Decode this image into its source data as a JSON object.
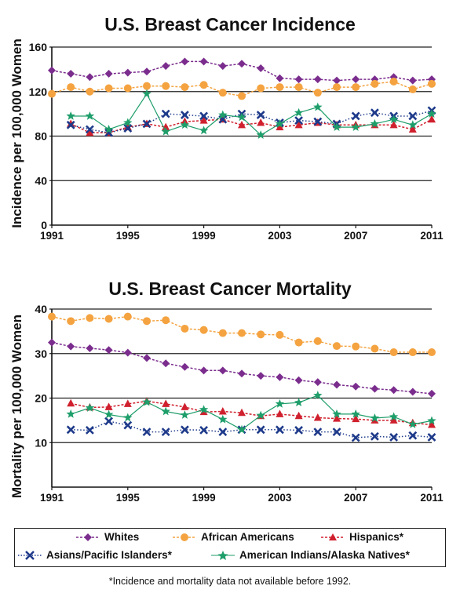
{
  "chart_data": [
    {
      "type": "line",
      "title": "U.S. Breast Cancer Incidence",
      "ylabel": "Incidence per 100,000 Women",
      "xlabel": "",
      "ylim": [
        0,
        160
      ],
      "yticks": [
        0,
        40,
        80,
        120,
        160
      ],
      "xticks": [
        1991,
        1995,
        1999,
        2003,
        2007,
        2011
      ],
      "xlim": [
        1991,
        2011
      ],
      "grid": "horizontal",
      "series": [
        {
          "name": "Whites",
          "color": "#7B2D8E",
          "marker": "diamond",
          "style": "dashed",
          "x": [
            1991,
            1992,
            1993,
            1994,
            1995,
            1996,
            1997,
            1998,
            1999,
            2000,
            2001,
            2002,
            2003,
            2004,
            2005,
            2006,
            2007,
            2008,
            2009,
            2010,
            2011
          ],
          "values": [
            139,
            136,
            133,
            136,
            137,
            138,
            143,
            147,
            147,
            143,
            145,
            141,
            132,
            131,
            131,
            130,
            131,
            131,
            133,
            130,
            131
          ]
        },
        {
          "name": "African Americans",
          "color": "#F4A340",
          "marker": "circle",
          "style": "dashed",
          "x": [
            1991,
            1992,
            1993,
            1994,
            1995,
            1996,
            1997,
            1998,
            1999,
            2000,
            2001,
            2002,
            2003,
            2004,
            2005,
            2006,
            2007,
            2008,
            2009,
            2010,
            2011
          ],
          "values": [
            118,
            124,
            120,
            123,
            123,
            125,
            125,
            124,
            126,
            119,
            116,
            123,
            124,
            124,
            119,
            124,
            124,
            127,
            129,
            122,
            127
          ]
        },
        {
          "name": "Hispanics*",
          "color": "#D0202E",
          "marker": "triangle",
          "style": "dashed",
          "x": [
            1992,
            1993,
            1994,
            1995,
            1996,
            1997,
            1998,
            1999,
            2000,
            2001,
            2002,
            2003,
            2004,
            2005,
            2006,
            2007,
            2008,
            2009,
            2010,
            2011
          ],
          "values": [
            91,
            83,
            83,
            88,
            91,
            88,
            93,
            94,
            95,
            90,
            92,
            88,
            90,
            92,
            90,
            90,
            90,
            90,
            86,
            95
          ]
        },
        {
          "name": "Asians/Pacific Islanders*",
          "color": "#1E3A8A",
          "marker": "x",
          "style": "dotted",
          "x": [
            1992,
            1993,
            1994,
            1995,
            1996,
            1997,
            1998,
            1999,
            2000,
            2001,
            2002,
            2003,
            2004,
            2005,
            2006,
            2007,
            2008,
            2009,
            2010,
            2011
          ],
          "values": [
            90,
            86,
            83,
            87,
            91,
            100,
            99,
            98,
            95,
            100,
            99,
            92,
            94,
            93,
            91,
            98,
            101,
            98,
            98,
            103
          ]
        },
        {
          "name": "American Indians/Alaska Natives*",
          "color": "#1E9E6A",
          "marker": "star",
          "style": "solid",
          "x": [
            1992,
            1993,
            1994,
            1995,
            1996,
            1997,
            1998,
            1999,
            2000,
            2001,
            2002,
            2003,
            2004,
            2005,
            2006,
            2007,
            2008,
            2009,
            2010,
            2011
          ],
          "values": [
            98,
            98,
            86,
            92,
            118,
            84,
            90,
            85,
            99,
            97,
            81,
            91,
            101,
            106,
            88,
            88,
            91,
            95,
            90,
            100
          ]
        }
      ]
    },
    {
      "type": "line",
      "title": "U.S. Breast Cancer Mortality",
      "ylabel": "Mortality per 100,000 Women",
      "xlabel": "",
      "ylim": [
        0,
        40
      ],
      "yticks": [
        10,
        20,
        30,
        40
      ],
      "xticks": [
        1991,
        1995,
        1999,
        2003,
        2007,
        2011
      ],
      "xlim": [
        1991,
        2011
      ],
      "grid": "horizontal",
      "series": [
        {
          "name": "Whites",
          "color": "#7B2D8E",
          "marker": "diamond",
          "style": "dashed",
          "x": [
            1991,
            1992,
            1993,
            1994,
            1995,
            1996,
            1997,
            1998,
            1999,
            2000,
            2001,
            2002,
            2003,
            2004,
            2005,
            2006,
            2007,
            2008,
            2009,
            2010,
            2011
          ],
          "values": [
            32.5,
            31.6,
            31.2,
            30.8,
            30.2,
            29.0,
            27.8,
            27.0,
            26.2,
            26.2,
            25.5,
            25.0,
            24.7,
            24.0,
            23.6,
            23.0,
            22.6,
            22.1,
            21.8,
            21.4,
            21.0
          ]
        },
        {
          "name": "African Americans",
          "color": "#F4A340",
          "marker": "circle",
          "style": "dashed",
          "x": [
            1991,
            1992,
            1993,
            1994,
            1995,
            1996,
            1997,
            1998,
            1999,
            2000,
            2001,
            2002,
            2003,
            2004,
            2005,
            2006,
            2007,
            2008,
            2009,
            2010,
            2011
          ],
          "values": [
            38.3,
            37.3,
            38.0,
            37.8,
            38.3,
            37.3,
            37.5,
            35.6,
            35.3,
            34.6,
            34.6,
            34.3,
            34.2,
            32.5,
            32.8,
            31.7,
            31.6,
            31.1,
            30.3,
            30.3,
            30.3
          ]
        },
        {
          "name": "Hispanics*",
          "color": "#D0202E",
          "marker": "triangle",
          "style": "dashed",
          "x": [
            1992,
            1993,
            1994,
            1995,
            1996,
            1997,
            1998,
            1999,
            2000,
            2001,
            2002,
            2003,
            2004,
            2005,
            2006,
            2007,
            2008,
            2009,
            2010,
            2011
          ],
          "values": [
            18.8,
            17.9,
            18.0,
            18.7,
            19.3,
            18.7,
            18.0,
            16.9,
            17.0,
            16.7,
            16.0,
            16.4,
            16.0,
            15.6,
            15.4,
            15.3,
            15.0,
            15.0,
            14.4,
            14.0
          ]
        },
        {
          "name": "Asians/Pacific Islanders*",
          "color": "#1E3A8A",
          "marker": "x",
          "style": "dotted",
          "x": [
            1992,
            1993,
            1994,
            1995,
            1996,
            1997,
            1998,
            1999,
            2000,
            2001,
            2002,
            2003,
            2004,
            2005,
            2006,
            2007,
            2008,
            2009,
            2010,
            2011
          ],
          "values": [
            12.9,
            12.8,
            14.8,
            13.9,
            12.4,
            12.4,
            12.9,
            12.8,
            12.4,
            12.9,
            12.9,
            12.9,
            12.8,
            12.4,
            12.4,
            11.1,
            11.4,
            11.2,
            11.6,
            11.2
          ]
        },
        {
          "name": "American Indians/Alaska Natives*",
          "color": "#1E9E6A",
          "marker": "star",
          "style": "solid",
          "x": [
            1992,
            1993,
            1994,
            1995,
            1996,
            1997,
            1998,
            1999,
            2000,
            2001,
            2002,
            2003,
            2004,
            2005,
            2006,
            2007,
            2008,
            2009,
            2010,
            2011
          ],
          "values": [
            16.4,
            17.8,
            16.3,
            15.6,
            19.1,
            17.0,
            16.2,
            17.4,
            15.2,
            12.9,
            16.1,
            18.7,
            19.0,
            20.6,
            16.4,
            16.4,
            15.5,
            15.8,
            14.1,
            14.9
          ]
        }
      ]
    }
  ],
  "legend": {
    "items": [
      {
        "label": "Whites"
      },
      {
        "label": "African Americans"
      },
      {
        "label": "Hispanics*"
      },
      {
        "label": "Asians/Pacific Islanders*"
      },
      {
        "label": "American Indians/Alaska Natives*"
      }
    ]
  },
  "footnote": "*Incidence and mortality data not available before 1992."
}
